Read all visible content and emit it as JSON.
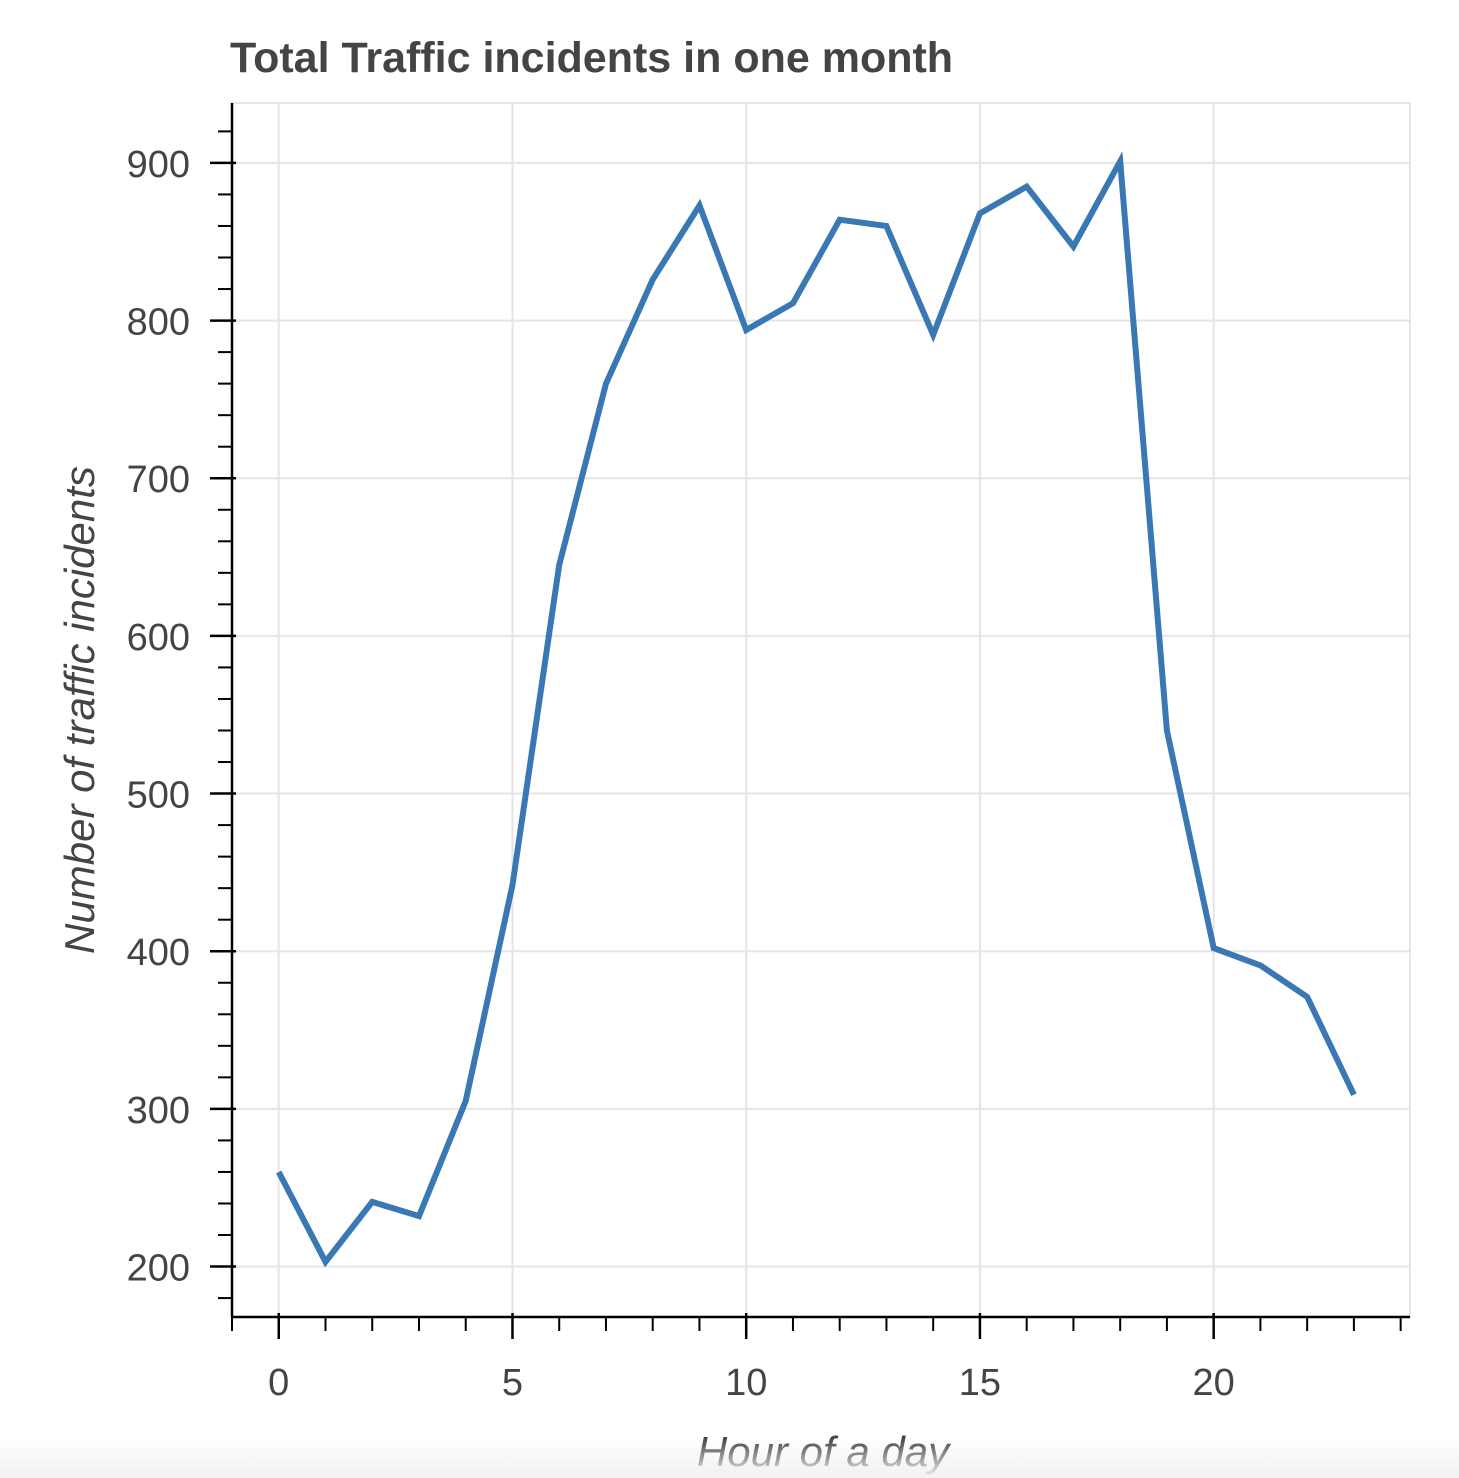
{
  "chart_data": {
    "type": "line",
    "title": "Total Traffic incidents in one month",
    "xlabel": "Hour of a day",
    "ylabel": "Number of traffic incidents",
    "x": [
      0,
      1,
      2,
      3,
      4,
      5,
      6,
      7,
      8,
      9,
      10,
      11,
      12,
      13,
      14,
      15,
      16,
      17,
      18,
      19,
      20,
      21,
      22,
      23
    ],
    "series": [
      {
        "values": [
          260,
          203,
          241,
          232,
          305,
          442,
          645,
          760,
          826,
          873,
          794,
          811,
          864,
          860,
          791,
          868,
          885,
          847,
          901,
          540,
          402,
          391,
          371,
          309
        ],
        "color": "#3a78b4"
      }
    ],
    "xlim": [
      -1,
      24.2
    ],
    "ylim": [
      168,
      938
    ],
    "xticks": [
      0,
      5,
      10,
      15,
      20
    ],
    "xticks_minor": [
      -1,
      0,
      1,
      2,
      3,
      4,
      5,
      6,
      7,
      8,
      9,
      10,
      11,
      12,
      13,
      14,
      15,
      16,
      17,
      18,
      19,
      20,
      21,
      22,
      23,
      24
    ],
    "yticks": [
      200,
      300,
      400,
      500,
      600,
      700,
      800,
      900
    ],
    "grid": true,
    "legend": "none",
    "colors": {
      "line": "#3a78b4",
      "grid": "#e5e5e5",
      "axis": "#000000",
      "text": "#444444"
    }
  }
}
